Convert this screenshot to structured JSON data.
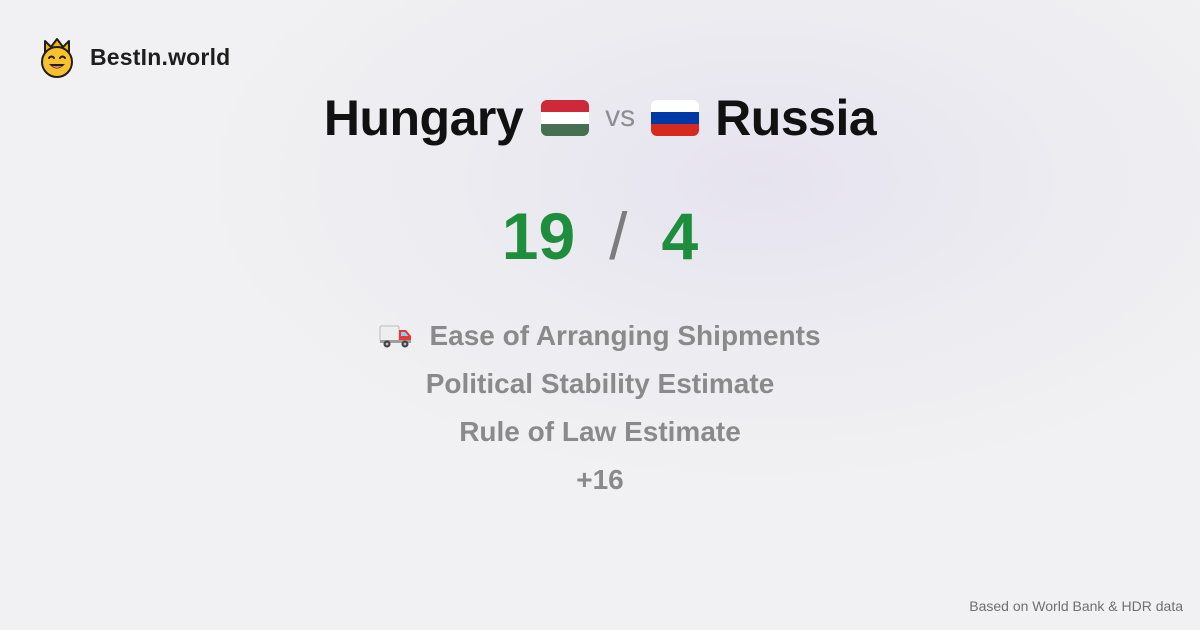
{
  "brand": {
    "name": "BestIn.world",
    "logo_icon": "crown-smiley-icon"
  },
  "comparison": {
    "left": {
      "country": "Hungary",
      "flag_colors": [
        "#CE2939",
        "#FFFFFF",
        "#477050"
      ]
    },
    "vs_label": "vs",
    "right": {
      "country": "Russia",
      "flag_colors": [
        "#FFFFFF",
        "#0039A6",
        "#D52B1E"
      ]
    }
  },
  "score": {
    "left": "19",
    "separator": "/",
    "right": "4",
    "color": "#1e8e3e"
  },
  "metrics": [
    {
      "label": "Ease of Arranging Shipments",
      "icon": "delivery-truck-icon"
    },
    {
      "label": "Political Stability Estimate"
    },
    {
      "label": "Rule of Law Estimate"
    },
    {
      "label": "+16"
    }
  ],
  "footer": {
    "source_note": "Based on World Bank & HDR data"
  }
}
